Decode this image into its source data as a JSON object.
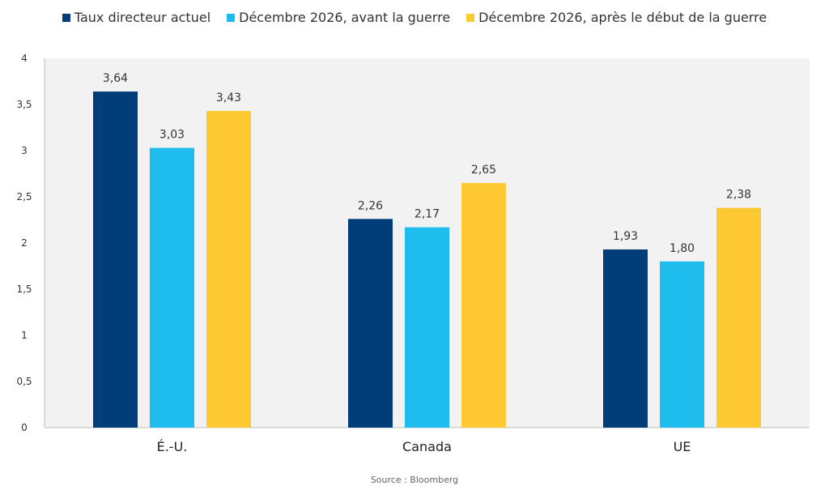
{
  "chart_data": {
    "type": "bar",
    "categories": [
      "É.-U.",
      "Canada",
      "UE"
    ],
    "series": [
      {
        "name": "Taux directeur actuel",
        "values": [
          3.64,
          2.26,
          1.93
        ],
        "labels": [
          "3,64",
          "2,26",
          "1,93"
        ],
        "color": "#003d79"
      },
      {
        "name": "Décembre 2026, avant la guerre",
        "values": [
          3.03,
          2.17,
          1.8
        ],
        "labels": [
          "3,03",
          "2,17",
          "1,80"
        ],
        "color": "#1fbdee"
      },
      {
        "name": "Décembre 2026, après le début de la guerre",
        "values": [
          3.43,
          2.65,
          2.38
        ],
        "labels": [
          "3,43",
          "2,65",
          "2,38"
        ],
        "color": "#ffc933"
      }
    ],
    "yticks": [
      0,
      0.5,
      1,
      1.5,
      2,
      2.5,
      3,
      3.5,
      4
    ],
    "ytick_labels": [
      "0",
      "0,5",
      "1",
      "1,5",
      "2",
      "2,5",
      "3",
      "3,5",
      "4"
    ],
    "ylim": [
      0,
      4
    ],
    "grid": false,
    "legend_position": "top-center",
    "title": "",
    "xlabel": "",
    "ylabel": "",
    "plot_background": "#f2f2f2"
  },
  "source": "Source : Bloomberg"
}
